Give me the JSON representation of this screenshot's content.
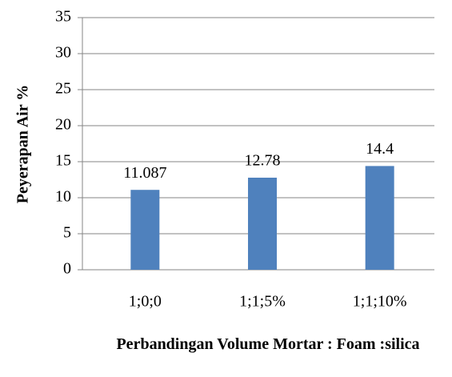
{
  "chart_data": {
    "type": "bar",
    "categories": [
      "1;0;0",
      "1;1;5%",
      "1;1;10%"
    ],
    "values": [
      11.087,
      12.78,
      14.4
    ],
    "color": "#4f81bd",
    "ylim": [
      0,
      35
    ],
    "yticks": [
      0,
      5,
      10,
      15,
      20,
      25,
      30,
      35
    ],
    "grid": true,
    "x_label": "Perbandingan Volume Mortar : Foam :silica",
    "y_label": "Peyerapan Air %"
  }
}
